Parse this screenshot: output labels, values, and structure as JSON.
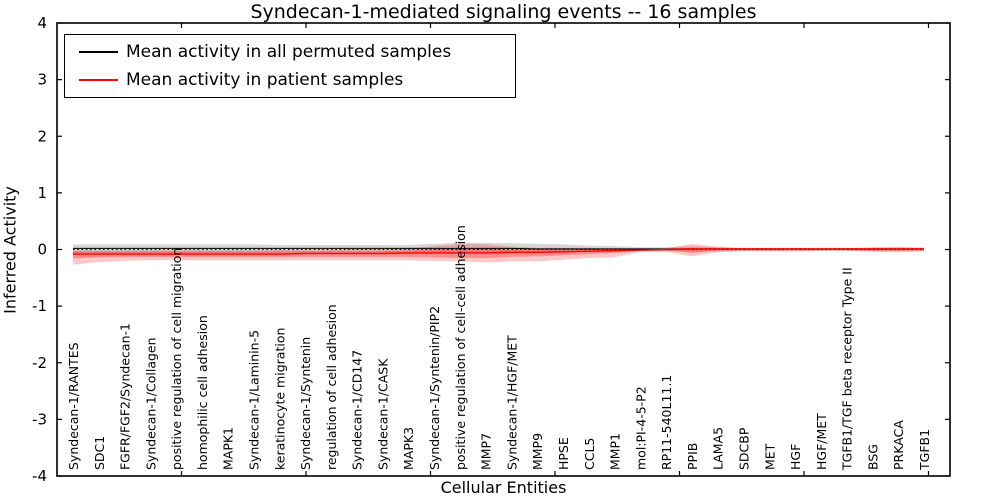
{
  "title": "Syndecan-1-mediated signaling events -- 16 samples",
  "axes": {
    "ylabel": "Inferred Activity",
    "xlabel": "Cellular Entities"
  },
  "legend": {
    "entries": [
      {
        "label": "Mean activity in all permuted samples",
        "color": "#000000"
      },
      {
        "label": "Mean activity in patient samples",
        "color": "#ff0000"
      }
    ],
    "position": "upper left"
  },
  "chart_data": {
    "type": "line",
    "title": "Syndecan-1-mediated signaling events -- 16 samples",
    "xlabel": "Cellular Entities",
    "ylabel": "Inferred Activity",
    "ylim": [
      -4,
      4
    ],
    "yticks": [
      4,
      3,
      2,
      1,
      0,
      -1,
      -2,
      -3,
      -4
    ],
    "grid": false,
    "legend_position": "upper left",
    "zero_line": true,
    "colors": {
      "permuted": "#000000",
      "patient": "#ff0000",
      "permuted_band": "rgba(0,0,0,0.16)",
      "patient_band_outer": "rgba(255,0,0,0.22)",
      "patient_band_inner": "rgba(255,0,0,0.30)"
    },
    "categories": [
      "Syndecan-1/RANTES",
      "SDC1",
      "FGFR/FGF2/Syndecan-1",
      "Syndecan-1/Collagen",
      "positive regulation of cell migration",
      "homophilic cell adhesion",
      "MAPK1",
      "Syndecan-1/Laminin-5",
      "keratinocyte migration",
      "Syndecan-1/Syntenin",
      "regulation of cell adhesion",
      "Syndecan-1/CD147",
      "Syndecan-1/CASK",
      "MAPK3",
      "Syndecan-1/Syntenin/PIP2",
      "positive regulation of cell-cell adhesion",
      "MMP7",
      "Syndecan-1/HGF/MET",
      "MMP9",
      "HPSE",
      "CCL5",
      "MMP1",
      "mol:PI-4-5-P2",
      "RP11-540L11.1",
      "PPIB",
      "LAMA5",
      "SDCBP",
      "MET",
      "HGF",
      "HGF/MET",
      "TGFB1/TGF beta receptor Type II",
      "BSG",
      "PRKACA",
      "TGFB1"
    ],
    "series": [
      {
        "name": "Mean activity in all permuted samples",
        "color": "#000000",
        "values": [
          0.02,
          0.02,
          0.02,
          0.02,
          0.02,
          0.02,
          0.02,
          0.02,
          0.02,
          0.02,
          0.02,
          0.02,
          0.02,
          0.02,
          0.02,
          0.02,
          0.02,
          0.02,
          0.01,
          0.01,
          0.01,
          0.01,
          0.01,
          0.01,
          0.01,
          0.01,
          0.01,
          0.01,
          0.01,
          0.01,
          0.01,
          0.01,
          0.01,
          0.01
        ]
      },
      {
        "name": "Mean activity in patient samples",
        "color": "#ff0000",
        "values": [
          -0.08,
          -0.08,
          -0.08,
          -0.08,
          -0.08,
          -0.08,
          -0.08,
          -0.08,
          -0.08,
          -0.07,
          -0.07,
          -0.07,
          -0.07,
          -0.06,
          -0.06,
          -0.06,
          -0.06,
          -0.05,
          -0.05,
          -0.04,
          -0.03,
          -0.02,
          -0.01,
          0.0,
          0.01,
          0.01,
          0.01,
          0.01,
          0.01,
          0.01,
          0.01,
          0.01,
          0.01,
          0.01
        ]
      }
    ],
    "bands": [
      {
        "name": "permuted-samples-range",
        "color": "rgba(0,0,0,0.16)",
        "high": [
          0.09,
          0.09,
          0.09,
          0.09,
          0.09,
          0.09,
          0.09,
          0.09,
          0.08,
          0.08,
          0.08,
          0.08,
          0.08,
          0.08,
          0.1,
          0.12,
          0.12,
          0.11,
          0.1,
          0.09,
          0.07,
          0.06,
          0.04,
          0.04,
          0.06,
          0.04,
          0.03,
          0.03,
          0.03,
          0.03,
          0.03,
          0.03,
          0.03,
          0.03
        ],
        "low": [
          -0.06,
          -0.06,
          -0.06,
          -0.06,
          -0.06,
          -0.06,
          -0.06,
          -0.06,
          -0.05,
          -0.05,
          -0.05,
          -0.05,
          -0.05,
          -0.05,
          -0.06,
          -0.06,
          -0.06,
          -0.06,
          -0.05,
          -0.05,
          -0.04,
          -0.04,
          -0.03,
          -0.03,
          -0.04,
          -0.03,
          -0.03,
          -0.03,
          -0.03,
          -0.03,
          -0.03,
          -0.03,
          -0.03,
          -0.03
        ]
      },
      {
        "name": "patient-samples-range-outer",
        "color": "rgba(255,0,0,0.22)",
        "high": [
          -0.02,
          -0.02,
          -0.02,
          -0.02,
          -0.02,
          -0.02,
          -0.02,
          -0.02,
          -0.01,
          -0.01,
          -0.01,
          0.0,
          0.0,
          0.02,
          0.06,
          0.1,
          0.09,
          0.05,
          0.03,
          0.03,
          0.03,
          0.0,
          0.0,
          0.02,
          0.1,
          0.05,
          0.02,
          0.02,
          0.02,
          0.02,
          0.02,
          0.04,
          0.05,
          0.03
        ],
        "low": [
          -0.27,
          -0.22,
          -0.2,
          -0.19,
          -0.19,
          -0.19,
          -0.19,
          -0.19,
          -0.19,
          -0.19,
          -0.19,
          -0.19,
          -0.19,
          -0.19,
          -0.2,
          -0.21,
          -0.23,
          -0.21,
          -0.21,
          -0.18,
          -0.15,
          -0.14,
          -0.04,
          -0.04,
          -0.12,
          -0.05,
          -0.03,
          -0.03,
          -0.03,
          -0.02,
          -0.02,
          -0.04,
          -0.05,
          -0.03
        ]
      },
      {
        "name": "patient-samples-range-inner",
        "color": "rgba(255,0,0,0.30)",
        "high": [
          -0.03,
          -0.03,
          -0.03,
          -0.03,
          -0.03,
          -0.03,
          -0.03,
          -0.03,
          -0.03,
          -0.03,
          -0.03,
          -0.03,
          -0.03,
          -0.02,
          0.0,
          0.03,
          0.02,
          0.0,
          -0.01,
          -0.01,
          -0.01,
          -0.01,
          0.0,
          0.01,
          0.03,
          0.02,
          0.02,
          0.02,
          0.02,
          0.02,
          0.02,
          0.02,
          0.02,
          0.02
        ],
        "low": [
          -0.16,
          -0.14,
          -0.13,
          -0.13,
          -0.13,
          -0.13,
          -0.13,
          -0.13,
          -0.13,
          -0.13,
          -0.13,
          -0.13,
          -0.13,
          -0.13,
          -0.14,
          -0.15,
          -0.15,
          -0.13,
          -0.12,
          -0.1,
          -0.08,
          -0.06,
          -0.02,
          -0.01,
          -0.06,
          -0.02,
          -0.01,
          -0.01,
          -0.01,
          -0.01,
          -0.01,
          -0.02,
          -0.02,
          -0.01
        ]
      }
    ]
  }
}
